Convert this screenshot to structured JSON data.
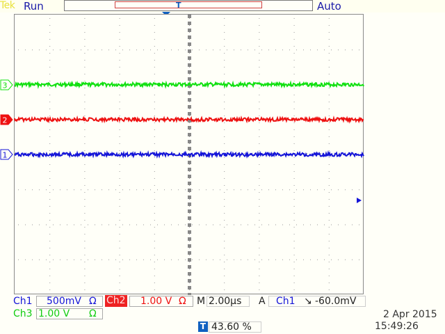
{
  "header": {
    "brand": "Tek",
    "acq_state": "Run",
    "trigger_mode": "Auto"
  },
  "record": {
    "trigger_letter": "T"
  },
  "trigger_marker": {
    "label": "T"
  },
  "channels": [
    {
      "id": "3",
      "color": "#11e011",
      "level_div": 2.0
    },
    {
      "id": "2",
      "color": "#ee1111",
      "level_div": 1.0
    },
    {
      "id": "1",
      "color": "#1515d8",
      "level_div": 0.0
    }
  ],
  "footer": {
    "ch1_label": "Ch1",
    "ch1_scale": "500mV",
    "ch1_unit": "Ω",
    "ch2_label": "Ch2",
    "ch2_scale": "1.00 V",
    "ch2_unit": "Ω",
    "ch3_label": "Ch3",
    "ch3_scale": "1.00 V",
    "ch3_unit": "Ω",
    "timebase_label": "M",
    "timebase_value": "2.00µs",
    "trig_source_label": "A",
    "trig_channel": "Ch1",
    "trig_slope": "↘",
    "trig_level": "-60.0mV",
    "trig_pos_icon": "T",
    "trig_position": "43.60 %",
    "date": "2 Apr  2015",
    "time": "15:49:26"
  }
}
